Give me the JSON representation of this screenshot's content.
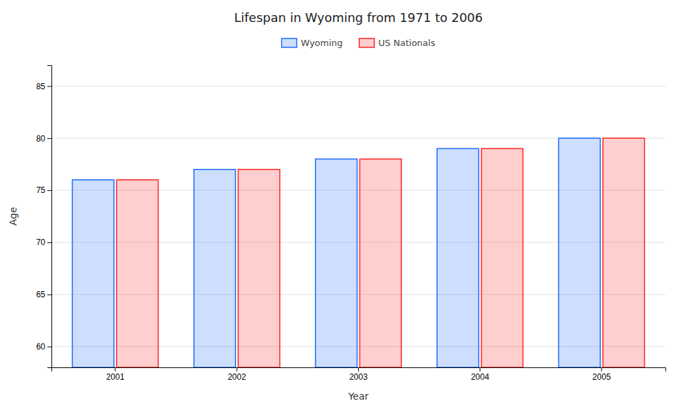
{
  "chart_data": {
    "type": "bar",
    "title": "Lifespan in Wyoming from 1971 to 2006",
    "x_label": "Year",
    "y_label": "Age",
    "categories": [
      "2001",
      "2002",
      "2003",
      "2004",
      "2005"
    ],
    "series": [
      {
        "name": "Wyoming",
        "color": "#1a6aff",
        "values": [
          76.0,
          77.0,
          78.0,
          79.0,
          80.0
        ]
      },
      {
        "name": "US Nationals",
        "color": "#ff2222",
        "values": [
          76.0,
          77.0,
          78.0,
          79.0,
          80.0
        ]
      }
    ],
    "ylim": [
      58,
      87
    ],
    "yticks": [
      60,
      65,
      70,
      75,
      80,
      85
    ],
    "grid": true,
    "legend": "top"
  }
}
